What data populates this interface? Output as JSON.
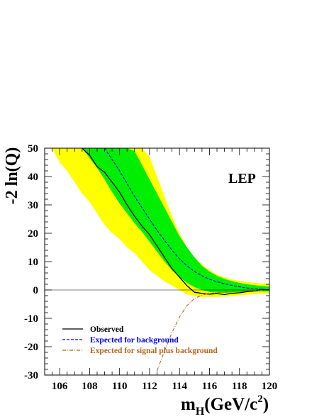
{
  "chart_data": {
    "type": "line",
    "annotation": "LEP",
    "ylabel": "-2 ln(Q)",
    "xlabel": {
      "main": "m",
      "sub": "H",
      "rest": "(GeV/c",
      "sup": "2",
      "close": ")"
    },
    "xlim": [
      105,
      120
    ],
    "ylim": [
      -30,
      50
    ],
    "x_ticks": [
      106,
      108,
      110,
      112,
      114,
      116,
      118,
      120
    ],
    "y_ticks": [
      -30,
      -20,
      -10,
      0,
      10,
      20,
      30,
      40,
      50
    ],
    "zero_line": true,
    "colors": {
      "band_2sigma": "#ffff00",
      "band_1sigma": "#00ee00",
      "observed": "#000000",
      "expected_background": "#0000ff",
      "expected_signal_plus_background": "#b5651d"
    },
    "legend_position": "bottom-left",
    "legend": [
      {
        "label": "Observed",
        "color": "#000000",
        "dash": "solid"
      },
      {
        "label": "Expected for background",
        "color": "#0000ff",
        "dash": "dashed"
      },
      {
        "label": "Expected for signal plus background",
        "color": "#b5651d",
        "dash": "dashdot"
      }
    ],
    "series": [
      {
        "name": "Observed",
        "style": "solid",
        "x": [
          107.5,
          108.0,
          108.5,
          109.0,
          109.5,
          110.0,
          110.5,
          111.0,
          111.5,
          112.0,
          112.5,
          113.0,
          113.5,
          114.0,
          114.5,
          115.0,
          115.5,
          116.0,
          116.5,
          117.0,
          117.5,
          118.0,
          118.5,
          119.0,
          119.5,
          120.0
        ],
        "y": [
          50,
          47.5,
          43.5,
          41.5,
          38,
          34.5,
          30,
          26,
          22.5,
          19.5,
          15.5,
          11.5,
          7.5,
          4.5,
          1.5,
          -0.8,
          -1.2,
          -1.5,
          -1.3,
          -1.6,
          -1.2,
          -1.0,
          -0.6,
          -0.3,
          0.2,
          0
        ]
      },
      {
        "name": "Expected for background",
        "style": "dashed",
        "x": [
          109.0,
          109.5,
          110.0,
          110.5,
          111.0,
          111.5,
          112.0,
          112.5,
          113.0,
          113.5,
          114.0,
          114.5,
          115.0,
          115.5,
          116.0,
          116.5,
          117.0,
          117.5,
          118.0,
          118.5,
          119.0,
          119.5,
          120.0
        ],
        "y": [
          50,
          46,
          42,
          37.5,
          33,
          29,
          25,
          21,
          17.5,
          14,
          11,
          8.5,
          6.5,
          5,
          3.8,
          2.9,
          2.2,
          1.6,
          1.1,
          0.7,
          0.4,
          0.2,
          0.1
        ]
      },
      {
        "name": "Expected for signal plus background",
        "style": "dashdot",
        "x": [
          112.5,
          113.0,
          113.5,
          114.0,
          114.5,
          115.0,
          115.5,
          116.0,
          116.5,
          117.0,
          117.5,
          118.0,
          118.5,
          119.0,
          119.5,
          120.0
        ],
        "y": [
          -28.5,
          -21.5,
          -15,
          -9.5,
          -5.5,
          -3.0,
          -1.8,
          -1.2,
          -0.9,
          -0.7,
          -0.5,
          -0.35,
          -0.2,
          -0.1,
          -0.05,
          0
        ]
      }
    ],
    "bands": [
      {
        "name": "2 sigma",
        "color": "#ffff00",
        "x": [
          105.5,
          106.0,
          106.5,
          107.0,
          107.5,
          108.0,
          108.5,
          109.0,
          109.5,
          110.0,
          110.5,
          111.0,
          111.5,
          112.0,
          112.5,
          113.0,
          113.5,
          114.0,
          114.5,
          115.0,
          115.5,
          116.0,
          116.5,
          117.0,
          117.5,
          118.0,
          118.5,
          119.0,
          119.5,
          120.0
        ],
        "lower": [
          50,
          45,
          42,
          38,
          34,
          31,
          27,
          23,
          20,
          18,
          15,
          13,
          10,
          7,
          5,
          3,
          1.5,
          0,
          -1.5,
          -2.2,
          -2.5,
          -2.5,
          -2.4,
          -2.3,
          -2.1,
          -1.9,
          -1.7,
          -1.5,
          -1.3,
          -1.2
        ],
        "upper": [
          50,
          50,
          50,
          50,
          50,
          50,
          50,
          50,
          50,
          50,
          50,
          50,
          50,
          47,
          40,
          33,
          26,
          20,
          15,
          11.5,
          9,
          7,
          5.5,
          4.5,
          3.7,
          3.2,
          2.8,
          2.5,
          2.3,
          2.2
        ]
      },
      {
        "name": "1 sigma",
        "color": "#00ee00",
        "x": [
          107.5,
          108.0,
          108.5,
          109.0,
          109.5,
          110.0,
          110.5,
          111.0,
          111.5,
          112.0,
          112.5,
          113.0,
          113.5,
          114.0,
          114.5,
          115.0,
          115.5,
          116.0,
          116.5,
          117.0,
          117.5,
          118.0,
          118.5,
          119.0,
          119.5,
          120.0
        ],
        "lower": [
          50,
          46.5,
          43,
          39,
          34.5,
          30.5,
          27,
          23.5,
          20.5,
          17,
          13.5,
          10,
          7,
          4.5,
          2.5,
          1,
          0,
          -0.7,
          -0.9,
          -1.0,
          -0.9,
          -0.8,
          -0.7,
          -0.6,
          -0.5,
          -0.5
        ],
        "upper": [
          50,
          50,
          50,
          50,
          50,
          50,
          50,
          49,
          44,
          39,
          34,
          29,
          24,
          19,
          15,
          11.5,
          8.5,
          6.5,
          5,
          3.9,
          3.1,
          2.5,
          2.0,
          1.7,
          1.4,
          1.2
        ]
      }
    ]
  }
}
